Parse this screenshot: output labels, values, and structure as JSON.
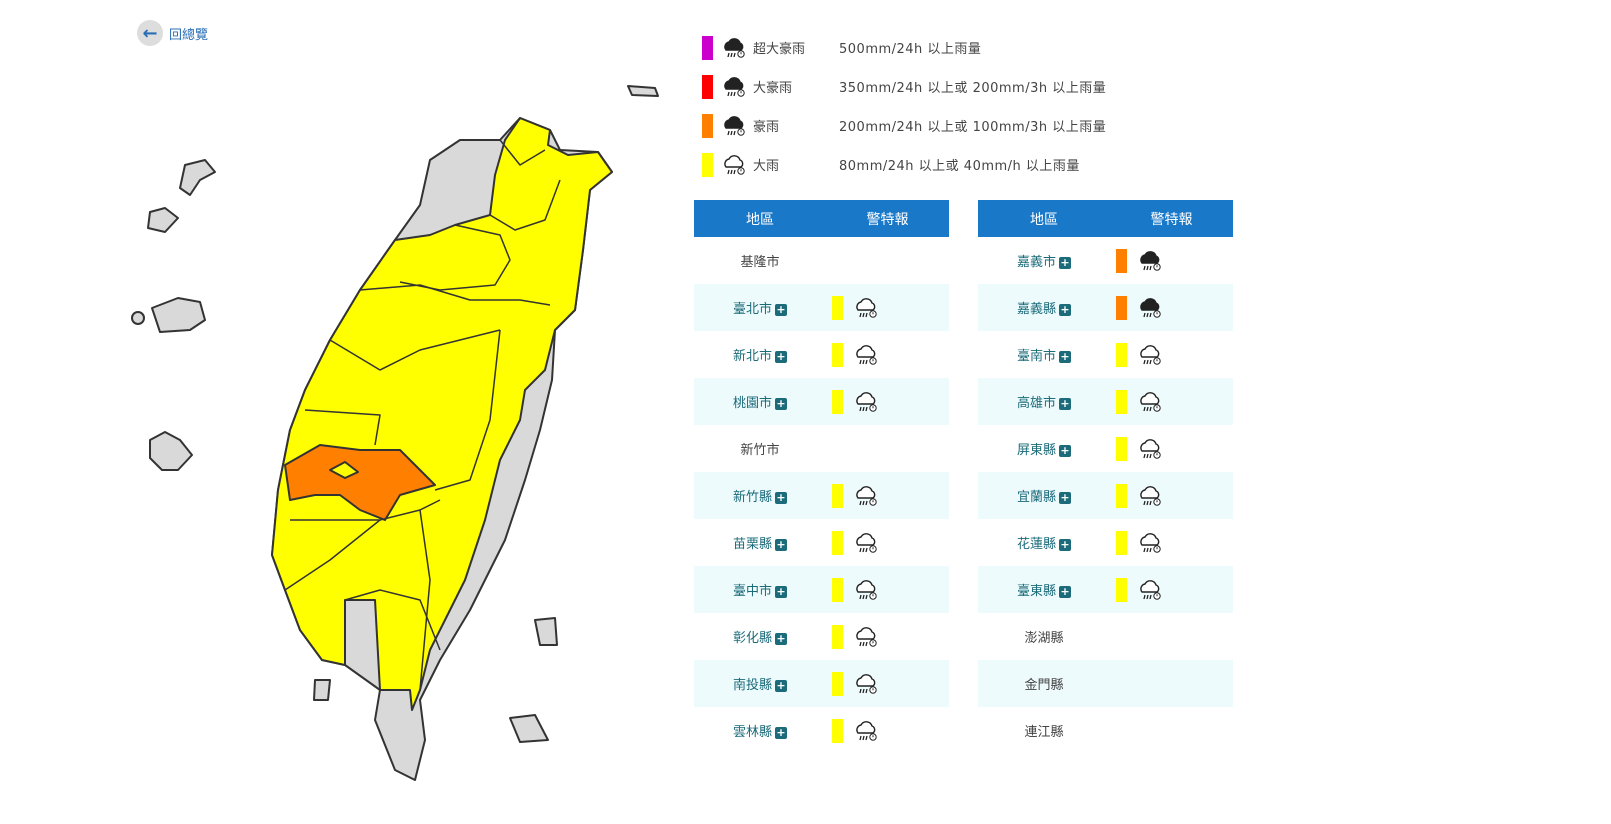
{
  "back": {
    "label": "回總覽",
    "icon": "arrow-left-icon"
  },
  "colors": {
    "super_torrential": "#cc00cc",
    "extremely_heavy": "#ff0000",
    "torrential": "#ff8000",
    "heavy": "#ffff00",
    "header": "#1a78c9",
    "none": "#d9d9d9"
  },
  "legend": [
    {
      "name": "超大豪雨",
      "desc": "500mm/24h 以上雨量",
      "color": "#cc00cc",
      "icon": "super-torrential-rain-icon"
    },
    {
      "name": "大豪雨",
      "desc": "350mm/24h 以上或 200mm/3h 以上雨量",
      "color": "#ff0000",
      "icon": "extremely-heavy-rain-icon"
    },
    {
      "name": "豪雨",
      "desc": "200mm/24h 以上或 100mm/3h 以上雨量",
      "color": "#ff8000",
      "icon": "torrential-rain-icon"
    },
    {
      "name": "大雨",
      "desc": "80mm/24h 以上或 40mm/h 以上雨量",
      "color": "#ffff00",
      "icon": "heavy-rain-icon"
    }
  ],
  "table_headers": {
    "region": "地區",
    "warning": "警特報"
  },
  "left_rows": [
    {
      "name": "基隆市",
      "level": null
    },
    {
      "name": "臺北市",
      "level": "heavy"
    },
    {
      "name": "新北市",
      "level": "heavy"
    },
    {
      "name": "桃園市",
      "level": "heavy"
    },
    {
      "name": "新竹市",
      "level": null
    },
    {
      "name": "新竹縣",
      "level": "heavy"
    },
    {
      "name": "苗栗縣",
      "level": "heavy"
    },
    {
      "name": "臺中市",
      "level": "heavy"
    },
    {
      "name": "彰化縣",
      "level": "heavy"
    },
    {
      "name": "南投縣",
      "level": "heavy"
    },
    {
      "name": "雲林縣",
      "level": "heavy"
    }
  ],
  "right_rows": [
    {
      "name": "嘉義市",
      "level": "torrential"
    },
    {
      "name": "嘉義縣",
      "level": "torrential"
    },
    {
      "name": "臺南市",
      "level": "heavy"
    },
    {
      "name": "高雄市",
      "level": "heavy"
    },
    {
      "name": "屏東縣",
      "level": "heavy"
    },
    {
      "name": "宜蘭縣",
      "level": "heavy"
    },
    {
      "name": "花蓮縣",
      "level": "heavy"
    },
    {
      "name": "臺東縣",
      "level": "heavy"
    },
    {
      "name": "澎湖縣",
      "level": null
    },
    {
      "name": "金門縣",
      "level": null
    },
    {
      "name": "連江縣",
      "level": null
    }
  ]
}
